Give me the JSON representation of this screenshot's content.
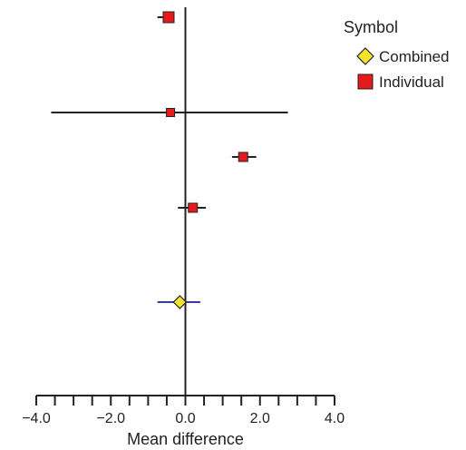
{
  "chart_data": {
    "type": "scatter",
    "subtype": "forest-plot",
    "xlabel": "Mean difference",
    "xlim": [
      -4.0,
      4.0
    ],
    "xticks": [
      -4.0,
      -3.5,
      -3.0,
      -2.5,
      -2.0,
      -1.5,
      -1.0,
      -0.5,
      0.0,
      0.5,
      1.0,
      1.5,
      2.0,
      2.5,
      3.0,
      3.5,
      4.0
    ],
    "xtick_labels": [
      {
        "value": -4.0,
        "label": "−4.0"
      },
      {
        "value": -2.0,
        "label": "−2.0"
      },
      {
        "value": 0.0,
        "label": "0.0"
      },
      {
        "value": 2.0,
        "label": "2.0"
      },
      {
        "value": 4.0,
        "label": "4.0"
      }
    ],
    "reference_line": 0.0,
    "grid": false,
    "legend": {
      "title": "Symbol",
      "placement": "top-right",
      "entries": [
        {
          "label": "Combined",
          "marker": "diamond",
          "color": "#f3e62a"
        },
        {
          "label": "Individual",
          "marker": "square",
          "color": "#e41a1c"
        }
      ]
    },
    "series": [
      {
        "name": "Individual",
        "marker": "square",
        "color": "#e41a1c",
        "ci_color": "#222222",
        "points": [
          {
            "estimate": -0.45,
            "lower": -0.75,
            "upper": -0.3
          },
          {
            "estimate": -0.4,
            "lower": -3.6,
            "upper": 2.75
          },
          {
            "estimate": 1.55,
            "lower": 1.25,
            "upper": 1.9
          },
          {
            "estimate": 0.2,
            "lower": -0.2,
            "upper": 0.55
          }
        ]
      },
      {
        "name": "Combined",
        "marker": "diamond",
        "color": "#f3e62a",
        "ci_color": "#3a3a9a",
        "points": [
          {
            "estimate": -0.15,
            "lower": -0.75,
            "upper": 0.4
          }
        ]
      }
    ]
  }
}
